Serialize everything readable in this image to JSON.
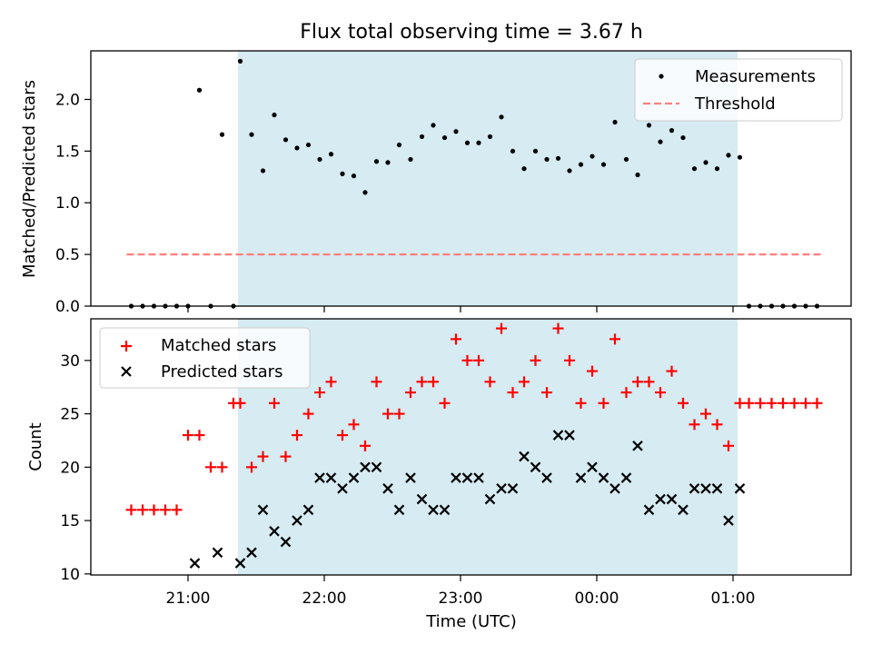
{
  "chart_data": [
    {
      "type": "scatter",
      "title": "Flux total observing time = 3.67 h",
      "ylabel": "Matched/Predicted stars",
      "xlabel": "",
      "ylim": [
        0,
        2.47
      ],
      "yticks": [
        "0.0",
        "0.5",
        "1.0",
        "1.5",
        "2.0"
      ],
      "legend_position": "top-right",
      "shaded_interval": [
        "21:22",
        "01:02"
      ],
      "series": [
        {
          "name": "Measurements",
          "color": "#000000",
          "marker": "dot",
          "x": [
            "20:35",
            "20:40",
            "20:45",
            "20:50",
            "20:55",
            "21:00",
            "21:05",
            "21:10",
            "21:15",
            "21:20",
            "21:23",
            "21:28",
            "21:33",
            "21:38",
            "21:43",
            "21:48",
            "21:53",
            "21:58",
            "22:03",
            "22:08",
            "22:13",
            "22:18",
            "22:23",
            "22:28",
            "22:33",
            "22:38",
            "22:43",
            "22:48",
            "22:53",
            "22:58",
            "23:03",
            "23:08",
            "23:13",
            "23:18",
            "23:23",
            "23:28",
            "23:33",
            "23:38",
            "23:43",
            "23:48",
            "23:53",
            "23:58",
            "00:03",
            "00:08",
            "00:13",
            "00:18",
            "00:23",
            "00:28",
            "00:33",
            "00:38",
            "00:43",
            "00:48",
            "00:53",
            "00:58",
            "01:03",
            "01:07",
            "01:12",
            "01:17",
            "01:22",
            "01:27",
            "01:32",
            "01:37"
          ],
          "y": [
            0,
            0,
            0,
            0,
            0,
            0,
            2.09,
            0,
            1.66,
            0,
            2.37,
            1.66,
            1.31,
            1.85,
            1.61,
            1.53,
            1.56,
            1.42,
            1.47,
            1.28,
            1.26,
            1.1,
            1.4,
            1.39,
            1.56,
            1.42,
            1.64,
            1.75,
            1.63,
            1.69,
            1.58,
            1.58,
            1.64,
            1.83,
            1.5,
            1.33,
            1.5,
            1.42,
            1.43,
            1.31,
            1.37,
            1.45,
            1.37,
            1.78,
            1.42,
            1.27,
            1.75,
            1.59,
            1.7,
            1.63,
            1.33,
            1.39,
            1.33,
            1.46,
            1.44,
            0,
            0,
            0,
            0,
            0,
            0,
            0
          ]
        },
        {
          "name": "Threshold",
          "color": "#ff7f7f",
          "style": "dashed",
          "x": [
            "20:33",
            "01:39"
          ],
          "y": [
            0.5,
            0.5
          ]
        }
      ]
    },
    {
      "type": "scatter",
      "title": "",
      "ylabel": "Count",
      "xlabel": "Time (UTC)",
      "ylim": [
        9.9,
        33.9
      ],
      "yticks": [
        "10",
        "15",
        "20",
        "25",
        "30"
      ],
      "xticks": [
        "21:00",
        "22:00",
        "23:00",
        "00:00",
        "01:00"
      ],
      "legend_position": "top-left",
      "shaded_interval": [
        "21:22",
        "01:02"
      ],
      "series": [
        {
          "name": "Matched stars",
          "color": "#ff0000",
          "marker": "plus",
          "x": [
            "20:35",
            "20:40",
            "20:45",
            "20:50",
            "20:55",
            "21:00",
            "21:05",
            "21:10",
            "21:15",
            "21:20",
            "21:23",
            "21:28",
            "21:33",
            "21:38",
            "21:43",
            "21:48",
            "21:53",
            "21:58",
            "22:03",
            "22:08",
            "22:13",
            "22:18",
            "22:23",
            "22:28",
            "22:33",
            "22:38",
            "22:43",
            "22:48",
            "22:53",
            "22:58",
            "23:03",
            "23:08",
            "23:13",
            "23:18",
            "23:23",
            "23:28",
            "23:33",
            "23:38",
            "23:43",
            "23:48",
            "23:53",
            "23:58",
            "00:03",
            "00:08",
            "00:13",
            "00:18",
            "00:23",
            "00:28",
            "00:33",
            "00:38",
            "00:43",
            "00:48",
            "00:53",
            "00:58",
            "01:03",
            "01:07",
            "01:12",
            "01:17",
            "01:22",
            "01:27",
            "01:32",
            "01:37"
          ],
          "y": [
            16,
            16,
            16,
            16,
            16,
            23,
            23,
            20,
            20,
            26,
            26,
            20,
            21,
            26,
            21,
            23,
            25,
            27,
            28,
            23,
            24,
            22,
            28,
            25,
            25,
            27,
            28,
            28,
            26,
            32,
            30,
            30,
            28,
            33,
            27,
            28,
            30,
            27,
            33,
            30,
            26,
            29,
            26,
            32,
            27,
            28,
            28,
            27,
            29,
            26,
            24,
            25,
            24,
            22,
            26,
            26,
            26,
            26,
            26,
            26,
            26,
            26
          ]
        },
        {
          "name": "Predicted stars",
          "color": "#000000",
          "marker": "x",
          "x": [
            "21:03",
            "21:13",
            "21:23",
            "21:28",
            "21:33",
            "21:38",
            "21:43",
            "21:48",
            "21:53",
            "21:58",
            "22:03",
            "22:08",
            "22:13",
            "22:18",
            "22:23",
            "22:28",
            "22:33",
            "22:38",
            "22:43",
            "22:48",
            "22:53",
            "22:58",
            "23:03",
            "23:08",
            "23:13",
            "23:18",
            "23:23",
            "23:28",
            "23:33",
            "23:38",
            "23:43",
            "23:48",
            "23:53",
            "23:58",
            "00:03",
            "00:08",
            "00:13",
            "00:18",
            "00:23",
            "00:28",
            "00:33",
            "00:38",
            "00:43",
            "00:48",
            "00:53",
            "00:58",
            "01:03"
          ],
          "y": [
            11,
            12,
            11,
            12,
            16,
            14,
            13,
            15,
            16,
            19,
            19,
            18,
            19,
            20,
            20,
            18,
            16,
            19,
            17,
            16,
            16,
            19,
            19,
            19,
            17,
            18,
            18,
            21,
            20,
            19,
            23,
            23,
            19,
            20,
            19,
            18,
            19,
            22,
            16,
            17,
            17,
            16,
            18,
            18,
            18,
            15,
            18
          ]
        }
      ]
    }
  ]
}
